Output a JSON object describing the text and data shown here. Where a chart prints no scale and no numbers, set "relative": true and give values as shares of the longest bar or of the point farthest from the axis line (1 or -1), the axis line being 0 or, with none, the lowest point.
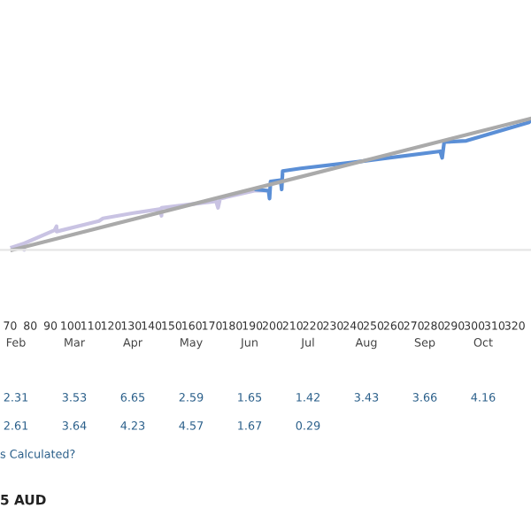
{
  "chart_data": {
    "type": "line",
    "relative": true,
    "xlim": [
      65,
      328
    ],
    "xticks": [
      70,
      80,
      90,
      100,
      110,
      120,
      130,
      140,
      150,
      160,
      170,
      180,
      190,
      200,
      210,
      220,
      230,
      240,
      250,
      260,
      270,
      280,
      290,
      300,
      310,
      320
    ],
    "series": [
      {
        "color": "#c9c3e3",
        "x": [
          71,
          77,
          77,
          77,
          92,
          93,
          93,
          114,
          116,
          131,
          144,
          145,
          145,
          172,
          173,
          174,
          191,
          198
        ],
        "values": [
          0.02,
          0.05,
          0.0,
          0.05,
          0.15,
          0.18,
          0.14,
          0.22,
          0.24,
          0.28,
          0.31,
          0.26,
          0.32,
          0.37,
          0.32,
          0.39,
          0.45,
          0.45
        ]
      },
      {
        "color": "#5b8fd6",
        "x": [
          192,
          198,
          198.5,
          199,
          204,
          204.5,
          205,
          214,
          242,
          283,
          284,
          285,
          296,
          327,
          328
        ],
        "values": [
          0.46,
          0.45,
          0.39,
          0.52,
          0.53,
          0.46,
          0.6,
          0.62,
          0.67,
          0.75,
          0.7,
          0.82,
          0.83,
          0.97,
          0.99
        ]
      },
      {
        "color": "#aaaaaa",
        "x": [
          71,
          328
        ],
        "values": [
          0.0,
          1.0
        ]
      }
    ],
    "annotations": [
      "Feb Mar Apr May Jun Jul Aug Sep Oct",
      "2.31 3.53 6.65 2.59 1.65 1.42 3.43 3.66 4.16",
      "2.61 3.64 4.23 4.57 1.67 0.29",
      "s Calculated?",
      "5 AUD"
    ]
  }
}
